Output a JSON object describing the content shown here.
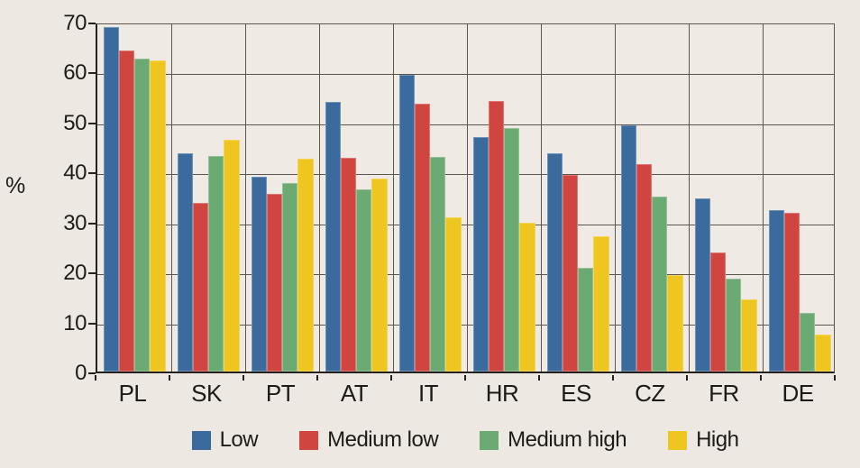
{
  "figure": {
    "background": "#EDE9E2",
    "plot_background": "#EFEBE4",
    "grid_color": "#5B564F",
    "axis_color": "#24211E",
    "text_color": "#1D1B18"
  },
  "chart_data": {
    "type": "bar",
    "title": "",
    "xlabel": "",
    "ylabel": "%",
    "ylim": [
      0,
      70
    ],
    "yticks": [
      0,
      10,
      20,
      30,
      40,
      50,
      60,
      70
    ],
    "grid": true,
    "legend_position": "bottom",
    "categories": [
      "PL",
      "SK",
      "PT",
      "AT",
      "IT",
      "HR",
      "ES",
      "CZ",
      "FR",
      "DE"
    ],
    "series": [
      {
        "name": "Low",
        "color": "#3A6B9C",
        "values": [
          69.0,
          43.7,
          39.0,
          54.0,
          59.3,
          47.0,
          43.7,
          49.2,
          34.6,
          32.3
        ]
      },
      {
        "name": "Medium low",
        "color": "#D0453F",
        "values": [
          64.3,
          33.7,
          35.6,
          42.8,
          53.5,
          54.2,
          39.4,
          41.5,
          23.9,
          31.7
        ]
      },
      {
        "name": "Medium high",
        "color": "#6BAA72",
        "values": [
          62.6,
          43.2,
          37.7,
          36.5,
          43.0,
          48.7,
          20.8,
          35.0,
          18.5,
          11.8
        ]
      },
      {
        "name": "High",
        "color": "#EFC51F",
        "values": [
          62.2,
          46.3,
          42.6,
          38.7,
          30.9,
          29.8,
          27.0,
          19.3,
          14.4,
          7.4
        ]
      }
    ]
  }
}
